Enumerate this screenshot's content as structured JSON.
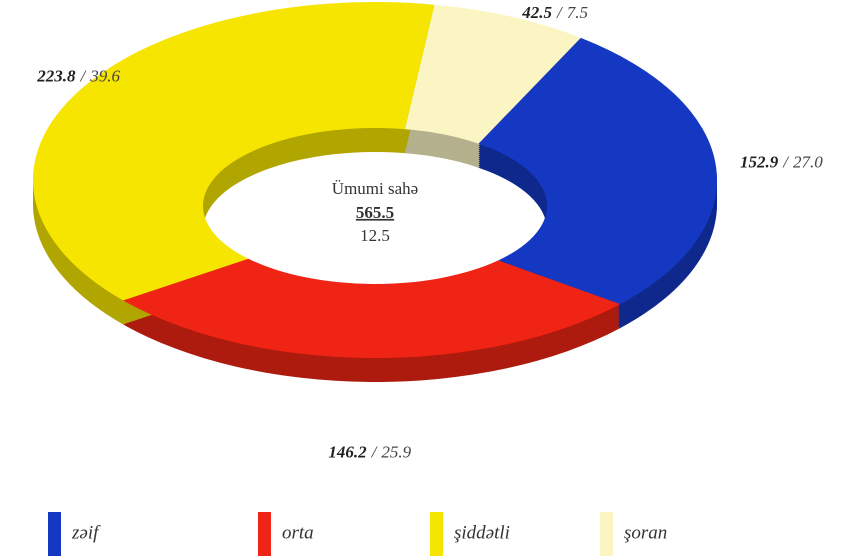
{
  "chart_data": {
    "type": "donut",
    "categories": [
      "zəif",
      "orta",
      "şiddətli",
      "şoran"
    ],
    "values": [
      152.9,
      146.2,
      223.8,
      42.5
    ],
    "percentages": [
      27.0,
      25.9,
      39.6,
      7.5
    ],
    "percentage_labels": [
      "27.0",
      "25.9",
      "39.6",
      "7.5"
    ],
    "colors": [
      "#1538c2",
      "#f02414",
      "#f6e500",
      "#fbf5c4"
    ],
    "separator": "/",
    "center_label": "Ümumi sahə",
    "total": 565.5,
    "total_share": 12.5
  }
}
